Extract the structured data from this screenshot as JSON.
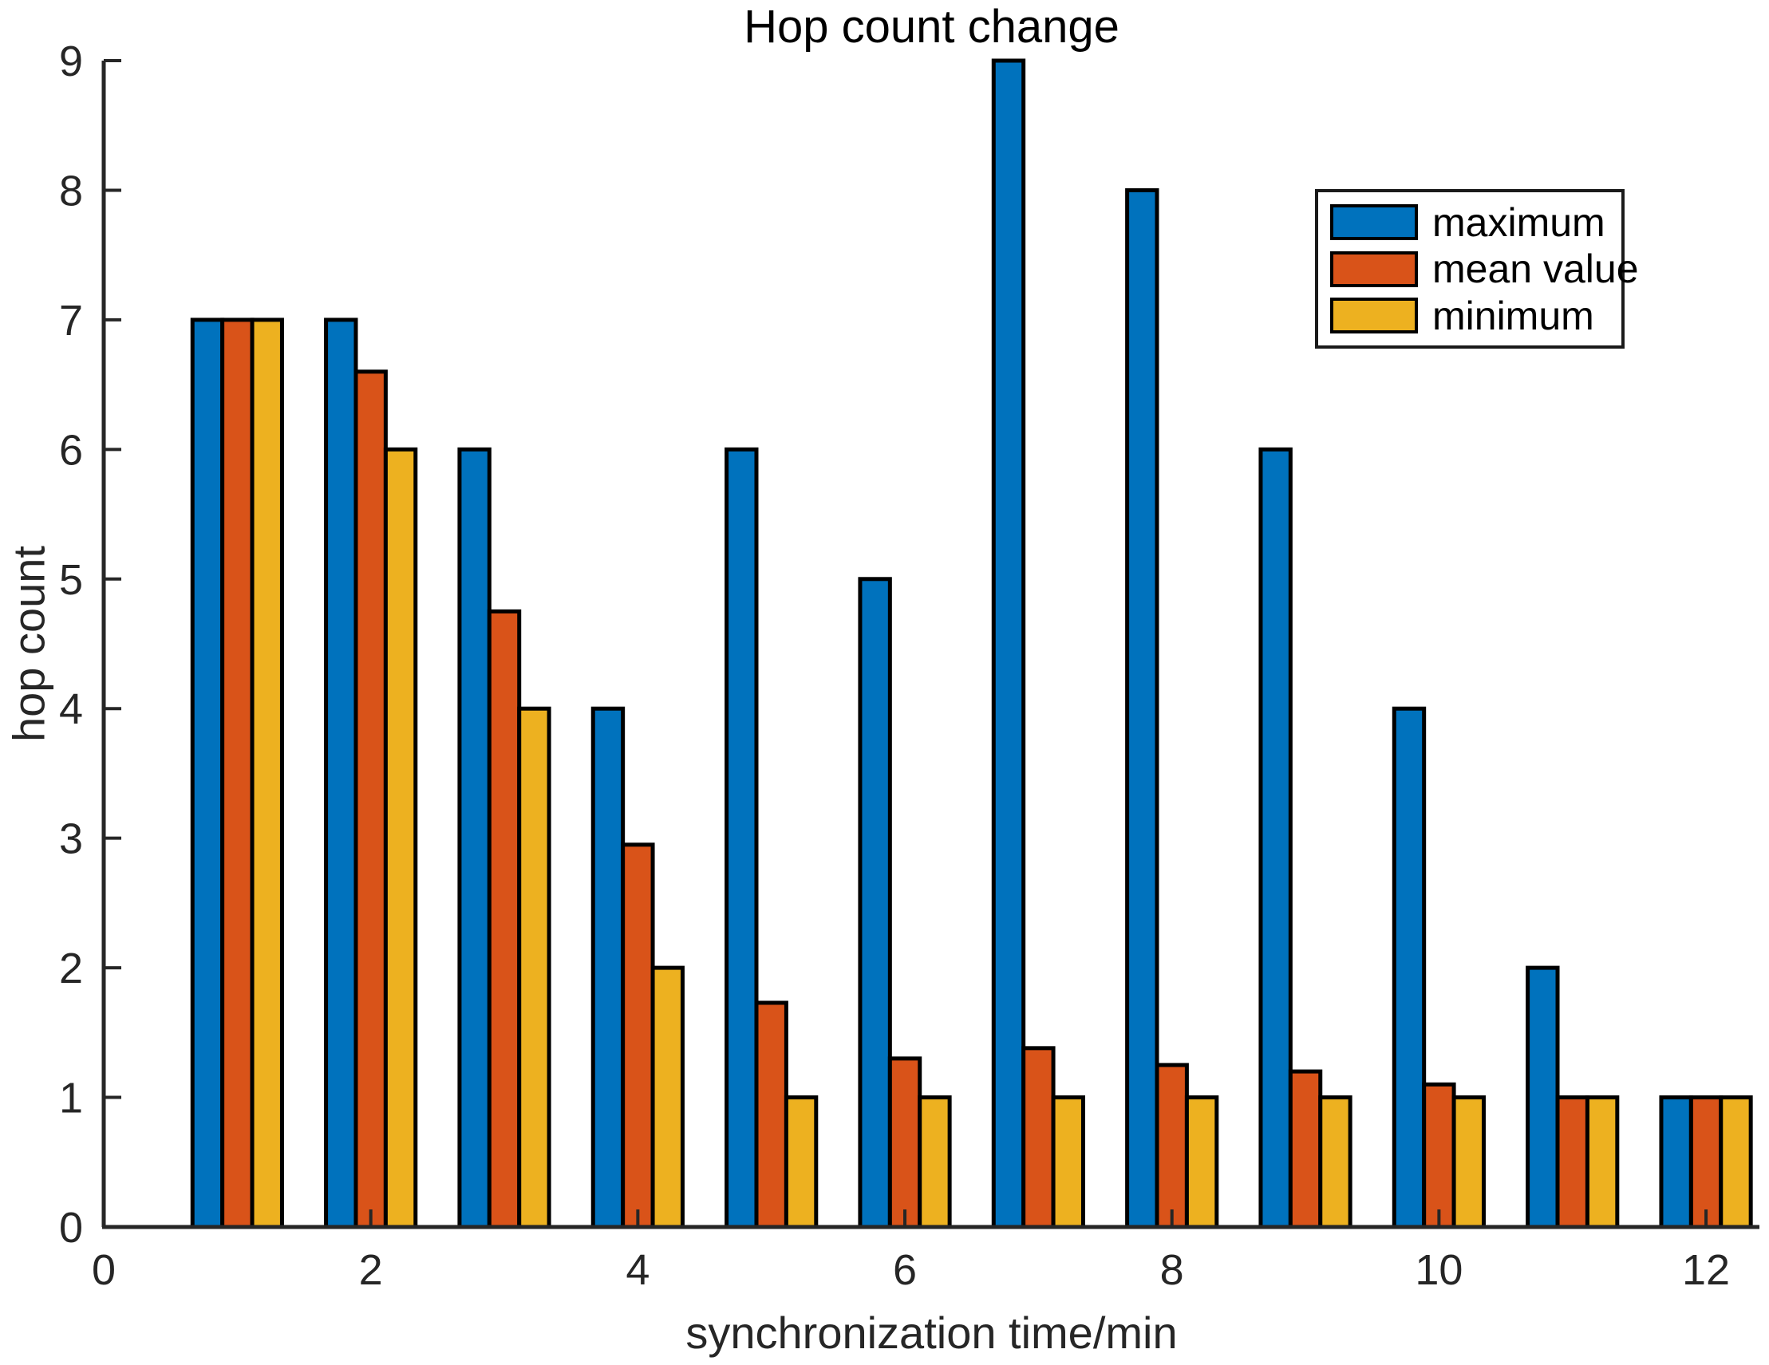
{
  "chart_data": {
    "type": "bar",
    "title": "Hop count change",
    "xlabel": "synchronization time/min",
    "ylabel": "hop count",
    "categories": [
      1,
      2,
      3,
      4,
      5,
      6,
      7,
      8,
      9,
      10,
      11,
      12
    ],
    "series": [
      {
        "name": "maximum",
        "color": "#0072BD",
        "values": [
          7,
          7,
          6,
          4,
          6,
          5,
          9,
          8,
          6,
          4,
          2,
          1
        ]
      },
      {
        "name": "mean value",
        "color": "#D95319",
        "values": [
          7,
          6.6,
          4.75,
          2.95,
          1.73,
          1.3,
          1.38,
          1.25,
          1.2,
          1.1,
          1,
          1
        ]
      },
      {
        "name": "minimum",
        "color": "#EDB120",
        "values": [
          7,
          6,
          4,
          2,
          1,
          1,
          1,
          1,
          1,
          1,
          1,
          1
        ]
      }
    ],
    "x_ticks": [
      0,
      2,
      4,
      6,
      8,
      10,
      12
    ],
    "y_ticks": [
      0,
      1,
      2,
      3,
      4,
      5,
      6,
      7,
      8,
      9
    ],
    "xlim": [
      0,
      12.4
    ],
    "ylim": [
      0,
      9
    ],
    "grid": false,
    "legend_position": "upper-right",
    "bar_edge_color": "#000000",
    "axis_color": "#262626",
    "background": "#FFFFFF"
  }
}
